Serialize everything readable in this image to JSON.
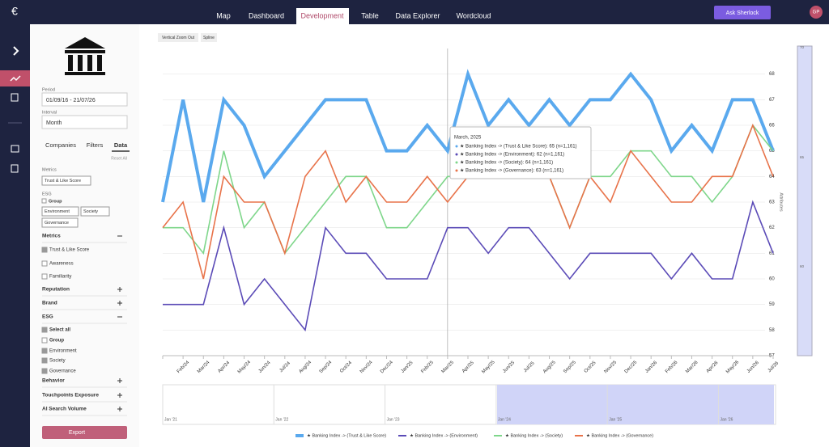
{
  "nav": {
    "tabs": [
      "Map",
      "Dashboard",
      "Development",
      "Table",
      "Data Explorer",
      "Wordcloud"
    ],
    "ask": "Ask Sherlock",
    "avatar": "GP"
  },
  "sidebar": {
    "period_label": "Period",
    "period": "01/09/16 - 21/07/26",
    "interval_label": "Interval",
    "interval": "Month",
    "tabs": [
      "Companies",
      "Filters",
      "Data"
    ],
    "reset": "Reset All",
    "metrics_label": "Metrics",
    "metrics_chip": "Trust & Like Score",
    "esg_label": "ESG",
    "group": "Group",
    "esg_chips": [
      "Environment",
      "Society",
      "Governance"
    ],
    "metrics_header": "Metrics",
    "metrics_items": [
      "Trust & Like Score",
      "Awareness",
      "Familiarity"
    ],
    "metrics_checked": [
      true,
      false,
      false
    ],
    "sections": [
      "Reputation",
      "Brand"
    ],
    "esg_header": "ESG",
    "esg_items": [
      "Select all",
      "Group",
      "Environment",
      "Society",
      "Governance"
    ],
    "esg_checked": [
      true,
      false,
      true,
      true,
      true
    ],
    "more_sections": [
      "Behavior",
      "Touchpoints Exposure",
      "AI Search Volume"
    ],
    "export": "Export"
  },
  "toolbar": [
    "Vertical Zoom Out",
    "Spline"
  ],
  "chart_data": {
    "type": "line",
    "categories": [
      null,
      "Feb/24",
      "Mar/24",
      "Apr/24",
      "May/24",
      "Jun/24",
      "Jul/24",
      "Aug/24",
      "Sep/24",
      "Oct/24",
      "Nov/24",
      "Dec/24",
      "Jan/25",
      "Feb/25",
      "Mar/25",
      "Apr/25",
      "May/25",
      "Jun/25",
      "Jul/25",
      "Aug/25",
      "Sep/25",
      "Oct/25",
      "Nov/25",
      "Dec/25",
      "Jan/26",
      "Feb/26",
      "Mar/26",
      "Apr/26",
      "May/26",
      "Jun/26",
      "Jul/26"
    ],
    "series": [
      {
        "name": "★ Banking Index -> (Trust & Like Score)",
        "color": "#5aa9ee",
        "values": [
          63,
          67,
          63,
          67,
          66,
          64,
          65,
          66,
          67,
          67,
          67,
          65,
          65,
          66,
          65,
          68,
          66,
          67,
          66,
          67,
          66,
          67,
          67,
          68,
          67,
          65,
          66,
          65,
          67,
          67,
          65
        ]
      },
      {
        "name": "★ Banking Index -> (Environment)",
        "color": "#5b4bb7",
        "values": [
          59,
          59,
          59,
          62,
          59,
          60,
          59,
          58,
          62,
          61,
          61,
          60,
          60,
          60,
          62,
          62,
          61,
          62,
          62,
          61,
          60,
          61,
          61,
          61,
          61,
          60,
          61,
          60,
          60,
          63,
          61
        ]
      },
      {
        "name": "★ Banking Index -> (Society)",
        "color": "#7ed68a",
        "values": [
          62,
          62,
          61,
          65,
          62,
          63,
          61,
          62,
          63,
          64,
          64,
          62,
          62,
          63,
          64,
          64,
          64,
          64,
          64,
          64,
          62,
          64,
          64,
          65,
          65,
          64,
          64,
          63,
          64,
          66,
          65
        ]
      },
      {
        "name": "★ Banking Index -> (Governance)",
        "color": "#e8734a",
        "values": [
          62,
          63,
          60,
          64,
          63,
          63,
          61,
          64,
          65,
          63,
          64,
          63,
          63,
          64,
          63,
          64,
          64,
          64,
          64,
          64,
          62,
          64,
          63,
          65,
          64,
          63,
          63,
          64,
          64,
          66,
          64
        ]
      }
    ],
    "ylim": [
      57,
      69
    ],
    "yticks": [
      57,
      58,
      59,
      60,
      61,
      62,
      63,
      64,
      65,
      66,
      67,
      68
    ],
    "y_label": "Attributes",
    "tooltip": {
      "title": "March, 2025",
      "lines": [
        "★ Banking Index -> (Trust & Like Score): 65 (n=1,161)",
        "★ Banking Index -> (Environment): 62 (n=1,161)",
        "★ Banking Index -> (Society): 64 (n=1,161)",
        "★ Banking Index -> (Governance): 63 (n=1,161)"
      ]
    },
    "navigator": [
      "Jan '21",
      "Jan '22",
      "Jan '23",
      "Jan '24",
      "Jan '25",
      "Jan '26"
    ],
    "nav_scale": [
      "70",
      "65",
      "60"
    ]
  }
}
